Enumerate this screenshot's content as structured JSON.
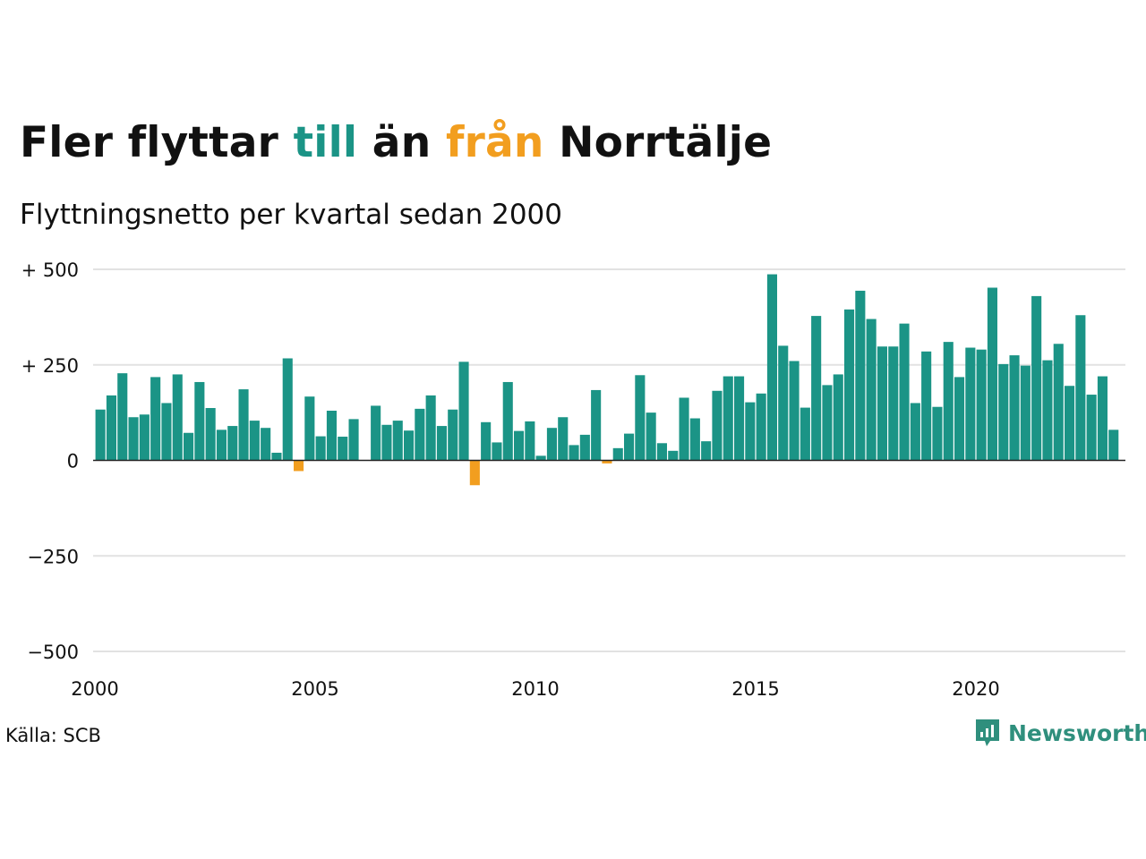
{
  "title": {
    "part1": "Fler flyttar ",
    "part2": "till",
    "part3": " än ",
    "part4": "från",
    "part5": " Norrtälje"
  },
  "subtitle": "Flyttningsnetto per kvartal sedan 2000",
  "source": "Källa: SCB",
  "brand": {
    "name": "Newsworthy",
    "icon": "newsworthy-logo-icon"
  },
  "colors": {
    "positive": "#1b9486",
    "negative": "#f29e1f",
    "grid": "#e2e2e2",
    "axis": "#222222"
  },
  "chart_data": {
    "type": "bar",
    "title": "Fler flyttar till än från Norrtälje",
    "subtitle": "Flyttningsnetto per kvartal sedan 2000",
    "xlabel": "",
    "ylabel": "",
    "ylim": [
      -500,
      500
    ],
    "grid": true,
    "y_ticks": [
      {
        "value": 500,
        "label": "+ 500"
      },
      {
        "value": 250,
        "label": "+ 250"
      },
      {
        "value": 0,
        "label": "0"
      },
      {
        "value": -250,
        "label": "−250"
      },
      {
        "value": -500,
        "label": "−500"
      }
    ],
    "x_ticks": [
      {
        "year": 2000,
        "label": "2000"
      },
      {
        "year": 2005,
        "label": "2005"
      },
      {
        "year": 2010,
        "label": "2010"
      },
      {
        "year": 2015,
        "label": "2015"
      },
      {
        "year": 2020,
        "label": "2020"
      }
    ],
    "start_year": 2000,
    "periods_per_year": 4,
    "values": [
      133,
      170,
      228,
      113,
      120,
      218,
      150,
      225,
      72,
      205,
      137,
      80,
      90,
      186,
      104,
      85,
      20,
      267,
      -28,
      167,
      63,
      130,
      62,
      108,
      null,
      143,
      93,
      104,
      78,
      135,
      170,
      90,
      133,
      258,
      -65,
      100,
      47,
      205,
      77,
      102,
      12,
      85,
      113,
      40,
      67,
      184,
      -8,
      32,
      70,
      223,
      125,
      45,
      25,
      164,
      110,
      50,
      182,
      220,
      220,
      152,
      175,
      487,
      300,
      260,
      138,
      378,
      197,
      225,
      395,
      444,
      370,
      298,
      298,
      358,
      150,
      285,
      140,
      310,
      218,
      295,
      290,
      452,
      252,
      275,
      248,
      430,
      262,
      305,
      195,
      380,
      172,
      220,
      80
    ]
  }
}
